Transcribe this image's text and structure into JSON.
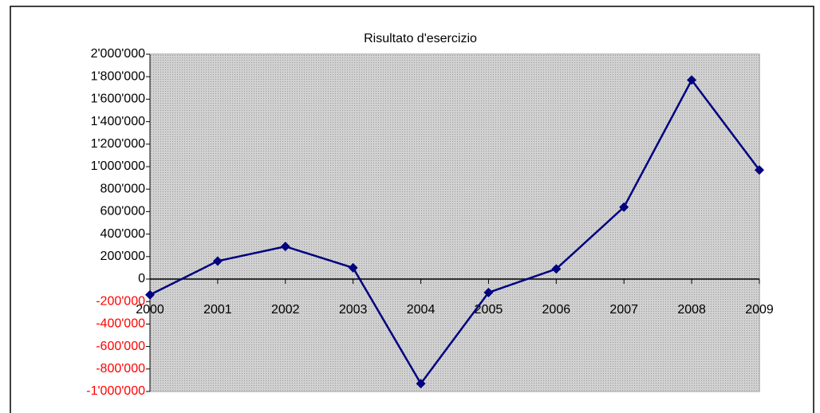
{
  "chart_data": {
    "type": "line",
    "title": "Risultato d'esercizio",
    "categories": [
      "2000",
      "2001",
      "2002",
      "2003",
      "2004",
      "2005",
      "2006",
      "2007",
      "2008",
      "2009"
    ],
    "series": [
      {
        "name": "Risultato d'esercizio",
        "color": "#000080",
        "values": [
          -140000,
          160000,
          290000,
          100000,
          -930000,
          -120000,
          90000,
          640000,
          1770000,
          970000
        ]
      }
    ],
    "ylim": [
      -1000000,
      2000000
    ],
    "yticks": [
      {
        "value": -1000000,
        "label": "-1'000'000"
      },
      {
        "value": -800000,
        "label": "-800'000"
      },
      {
        "value": -600000,
        "label": "-600'000"
      },
      {
        "value": -400000,
        "label": "-400'000"
      },
      {
        "value": -200000,
        "label": "-200'000"
      },
      0,
      {
        "value": 200000,
        "label": "200'000"
      },
      {
        "value": 400000,
        "label": "400'000"
      },
      {
        "value": 600000,
        "label": "600'000"
      },
      {
        "value": 800000,
        "label": "800'000"
      },
      {
        "value": 1000000,
        "label": "1'000'000"
      },
      {
        "value": 1200000,
        "label": "1'200'000"
      },
      {
        "value": 1400000,
        "label": "1'400'000"
      },
      {
        "value": 1600000,
        "label": "1'600'000"
      },
      {
        "value": 1800000,
        "label": "1'800'000"
      },
      {
        "value": 2000000,
        "label": "2'000'000"
      }
    ],
    "negative_tick_color": "#ff0000",
    "plot_background": "#c0c0c0"
  }
}
